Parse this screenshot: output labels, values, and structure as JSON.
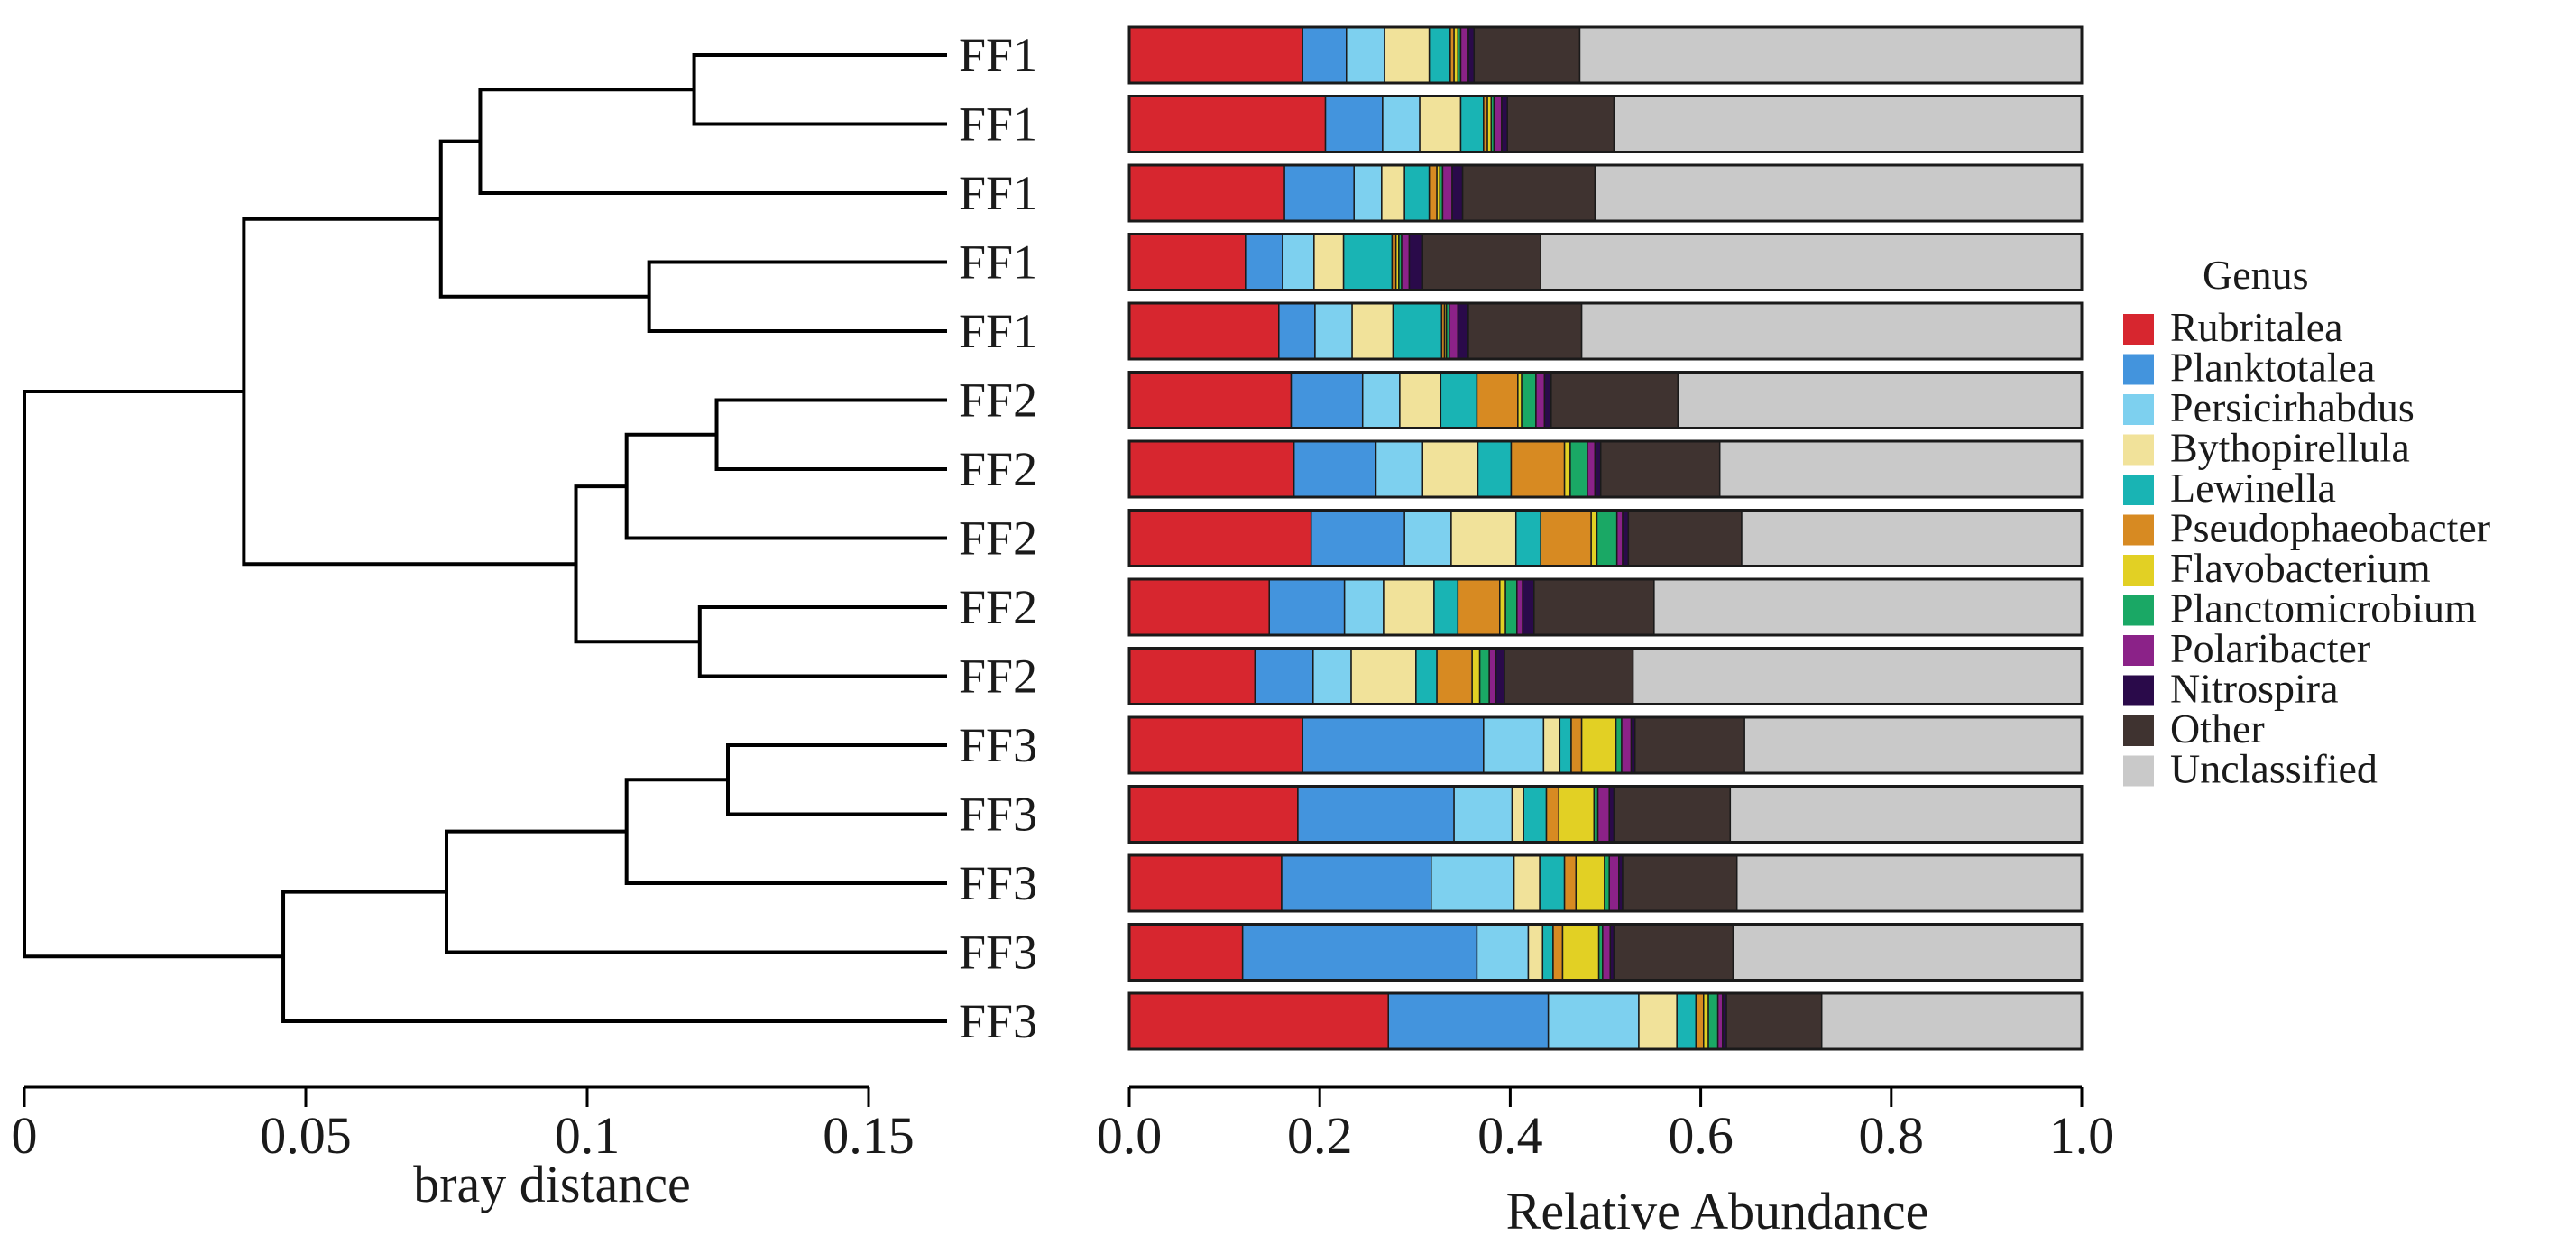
{
  "chart_data": [
    {
      "type": "dendrogram",
      "xlabel": "bray distance",
      "xlim": [
        0,
        0.15
      ],
      "xticks": [
        0,
        0.05,
        0.1,
        0.15
      ],
      "xtick_labels": [
        "0",
        "0.05",
        "0.1",
        "0.15"
      ],
      "leaves": [
        "FF1",
        "FF1",
        "FF1",
        "FF1",
        "FF1",
        "FF2",
        "FF2",
        "FF2",
        "FF2",
        "FF2",
        "FF3",
        "FF3",
        "FF3",
        "FF3",
        "FF3"
      ],
      "merges": [
        {
          "id": "A",
          "left": 0,
          "right": 1,
          "height": 0.119
        },
        {
          "id": "B",
          "left": "A",
          "right": 2,
          "height": 0.081
        },
        {
          "id": "C",
          "left": 3,
          "right": 4,
          "height": 0.111
        },
        {
          "id": "D",
          "left": "B",
          "right": "C",
          "height": 0.074
        },
        {
          "id": "E",
          "left": 5,
          "right": 6,
          "height": 0.123
        },
        {
          "id": "F",
          "left": "E",
          "right": 7,
          "height": 0.107
        },
        {
          "id": "G",
          "left": 8,
          "right": 9,
          "height": 0.12
        },
        {
          "id": "H",
          "left": "F",
          "right": "G",
          "height": 0.098
        },
        {
          "id": "I",
          "left": "D",
          "right": "H",
          "height": 0.039
        },
        {
          "id": "J",
          "left": 10,
          "right": 11,
          "height": 0.125
        },
        {
          "id": "K",
          "left": "J",
          "right": 12,
          "height": 0.107
        },
        {
          "id": "L",
          "left": "K",
          "right": 13,
          "height": 0.075
        },
        {
          "id": "M",
          "left": "L",
          "right": 14,
          "height": 0.046
        },
        {
          "id": "N",
          "left": "I",
          "right": "M",
          "height": 0.0
        }
      ]
    },
    {
      "type": "bar",
      "orientation": "horizontal",
      "stacked": true,
      "xlabel": "Relative Abundance",
      "ylabel": "",
      "xlim": [
        0,
        1
      ],
      "xticks": [
        0.0,
        0.2,
        0.4,
        0.6,
        0.8,
        1.0
      ],
      "xtick_labels": [
        "0.0",
        "0.2",
        "0.4",
        "0.6",
        "0.8",
        "1.0"
      ],
      "legend_title": "Genus",
      "legend_position": "right",
      "categories": [
        "FF1",
        "FF1",
        "FF1",
        "FF1",
        "FF1",
        "FF2",
        "FF2",
        "FF2",
        "FF2",
        "FF2",
        "FF3",
        "FF3",
        "FF3",
        "FF3",
        "FF3"
      ],
      "series": [
        {
          "name": "Rubritalea",
          "color": "#d7262f",
          "values": [
            0.182,
            0.206,
            0.163,
            0.122,
            0.157,
            0.17,
            0.173,
            0.191,
            0.147,
            0.132,
            0.182,
            0.177,
            0.16,
            0.119,
            0.272
          ]
        },
        {
          "name": "Planktotalea",
          "color": "#4394dd",
          "values": [
            0.046,
            0.06,
            0.073,
            0.039,
            0.038,
            0.075,
            0.086,
            0.098,
            0.079,
            0.061,
            0.19,
            0.164,
            0.157,
            0.246,
            0.168
          ]
        },
        {
          "name": "Persicirhabdus",
          "color": "#7dd0ef",
          "values": [
            0.04,
            0.039,
            0.029,
            0.033,
            0.039,
            0.039,
            0.049,
            0.049,
            0.041,
            0.04,
            0.063,
            0.061,
            0.087,
            0.054,
            0.095
          ]
        },
        {
          "name": "Bythopirellula",
          "color": "#f1e29a",
          "values": [
            0.047,
            0.043,
            0.024,
            0.031,
            0.043,
            0.043,
            0.058,
            0.068,
            0.053,
            0.068,
            0.017,
            0.012,
            0.027,
            0.015,
            0.04
          ]
        },
        {
          "name": "Lewinella",
          "color": "#19b4b4",
          "values": [
            0.022,
            0.024,
            0.026,
            0.051,
            0.051,
            0.038,
            0.035,
            0.026,
            0.025,
            0.022,
            0.012,
            0.024,
            0.026,
            0.011,
            0.02
          ]
        },
        {
          "name": "Pseudophaeobacter",
          "color": "#d78a22",
          "values": [
            0.004,
            0.004,
            0.008,
            0.004,
            0.003,
            0.043,
            0.056,
            0.053,
            0.044,
            0.037,
            0.011,
            0.013,
            0.012,
            0.01,
            0.008
          ]
        },
        {
          "name": "Flavobacterium",
          "color": "#e2d024",
          "values": [
            0.004,
            0.004,
            0.003,
            0.003,
            0.002,
            0.004,
            0.006,
            0.006,
            0.006,
            0.008,
            0.036,
            0.037,
            0.03,
            0.038,
            0.005
          ]
        },
        {
          "name": "Planctomicrobium",
          "color": "#1aa865",
          "values": [
            0.003,
            0.003,
            0.003,
            0.003,
            0.003,
            0.015,
            0.018,
            0.021,
            0.012,
            0.01,
            0.006,
            0.004,
            0.005,
            0.004,
            0.01
          ]
        },
        {
          "name": "Polaribacter",
          "color": "#8b2288",
          "values": [
            0.008,
            0.008,
            0.01,
            0.008,
            0.009,
            0.009,
            0.008,
            0.006,
            0.006,
            0.007,
            0.01,
            0.012,
            0.01,
            0.008,
            0.005
          ]
        },
        {
          "name": "Nitrospira",
          "color": "#2a0a4a",
          "values": [
            0.006,
            0.006,
            0.011,
            0.014,
            0.011,
            0.007,
            0.006,
            0.006,
            0.012,
            0.009,
            0.004,
            0.005,
            0.004,
            0.004,
            0.004
          ]
        },
        {
          "name": "Other",
          "color": "#3f3330",
          "values": [
            0.111,
            0.112,
            0.139,
            0.124,
            0.119,
            0.133,
            0.125,
            0.119,
            0.126,
            0.135,
            0.115,
            0.122,
            0.12,
            0.125,
            0.1
          ]
        },
        {
          "name": "Unclassified",
          "color": "#c9c9c9",
          "values": [
            0.527,
            0.491,
            0.511,
            0.568,
            0.525,
            0.424,
            0.38,
            0.357,
            0.449,
            0.471,
            0.354,
            0.369,
            0.362,
            0.366,
            0.273
          ]
        }
      ]
    }
  ]
}
